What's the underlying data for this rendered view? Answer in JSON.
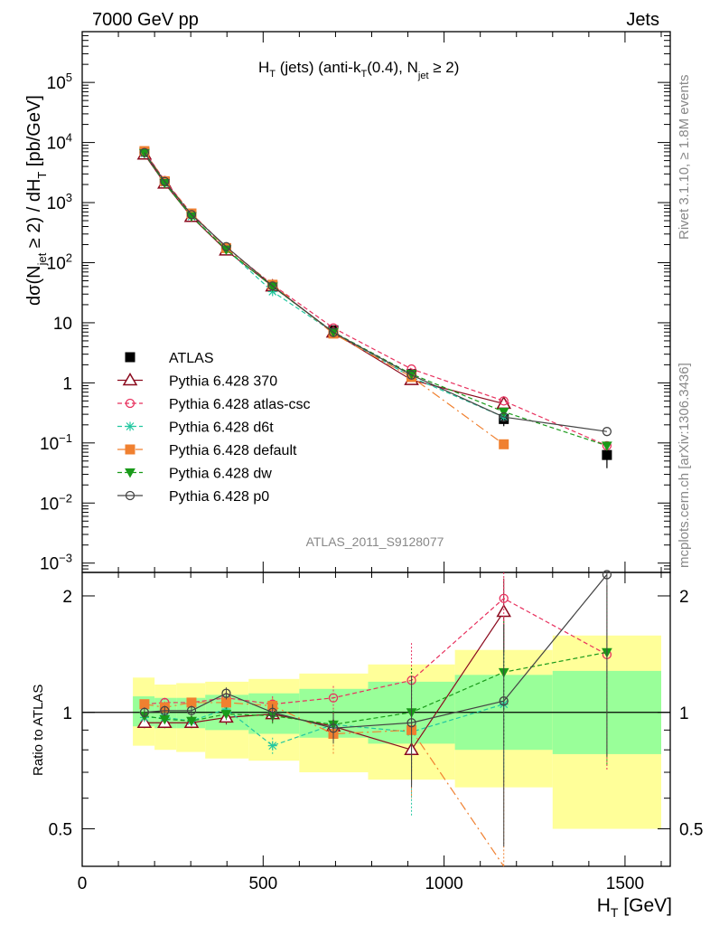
{
  "header": {
    "left": "7000 GeV pp",
    "right": "Jets"
  },
  "side": {
    "rivet": "Rivet 3.1.10, ≥ 1.8M events",
    "mcplots": "mcplots.cern.ch [arXiv:1306.3436]"
  },
  "chart_data": {
    "type": "line",
    "title": "H_T (jets) (anti-k_T(0.4), N_jet ≥ 2)",
    "analysis": "ATLAS_2011_S9128077",
    "xlabel": "H_T [GeV]",
    "ylabel": "dσ(N_jet ≥ 2) / dH_T [pb/GeV]",
    "ratio_ylabel": "Ratio to ATLAS",
    "xlim": [
      0,
      1625
    ],
    "ylim": [
      0.0007,
      700000
    ],
    "yscale": "log",
    "ratio_ylim": [
      0.4,
      2.3
    ],
    "ratio_scale": "log",
    "x_ticks": [
      0,
      500,
      1000,
      1500
    ],
    "y_ticks": [
      {
        "v": 0.001,
        "m": "10",
        "e": "−3"
      },
      {
        "v": 0.01,
        "m": "10",
        "e": "−2"
      },
      {
        "v": 0.1,
        "m": "10",
        "e": "−1"
      },
      {
        "v": 1,
        "m": "1",
        "e": ""
      },
      {
        "v": 10,
        "m": "10",
        "e": ""
      },
      {
        "v": 100,
        "m": "10",
        "e": "2"
      },
      {
        "v": 1000,
        "m": "10",
        "e": "3"
      },
      {
        "v": 10000,
        "m": "10",
        "e": "4"
      },
      {
        "v": 100000,
        "m": "10",
        "e": "5"
      }
    ],
    "ratio_ticks": [
      0.5,
      1,
      2
    ],
    "bins": [
      [
        140,
        200
      ],
      [
        200,
        260
      ],
      [
        260,
        340
      ],
      [
        340,
        460
      ],
      [
        460,
        600
      ],
      [
        600,
        790
      ],
      [
        790,
        1030
      ],
      [
        1030,
        1300
      ],
      [
        1300,
        1600
      ]
    ],
    "x": [
      172,
      228,
      302,
      398,
      526,
      694,
      910,
      1165,
      1450
    ],
    "band_inner": [
      [
        0.92,
        1.1
      ],
      [
        0.91,
        1.09
      ],
      [
        0.91,
        1.09
      ],
      [
        0.9,
        1.11
      ],
      [
        0.88,
        1.12
      ],
      [
        0.86,
        1.15
      ],
      [
        0.83,
        1.2
      ],
      [
        0.8,
        1.25
      ],
      [
        0.78,
        1.28
      ]
    ],
    "band_outer": [
      [
        0.82,
        1.23
      ],
      [
        0.8,
        1.18
      ],
      [
        0.79,
        1.19
      ],
      [
        0.76,
        1.2
      ],
      [
        0.75,
        1.22
      ],
      [
        0.7,
        1.26
      ],
      [
        0.67,
        1.33
      ],
      [
        0.64,
        1.45
      ],
      [
        0.5,
        1.58
      ]
    ],
    "series": [
      {
        "name": "ATLAS",
        "color": "#000000",
        "marker": "square-filled",
        "dash": "none",
        "line": false,
        "values": [
          6800,
          2200,
          620,
          165,
          41,
          7.5,
          1.4,
          0.25,
          0.063
        ],
        "err_up": [
          500,
          150,
          45,
          12,
          3,
          0.6,
          0.15,
          0.06,
          0.025
        ],
        "err_dn": [
          500,
          150,
          45,
          12,
          3,
          0.6,
          0.15,
          0.06,
          0.025
        ]
      },
      {
        "name": "Pythia 6.428 370",
        "color": "#8b0a1e",
        "marker": "triangle-open",
        "dash": "none",
        "line": true,
        "values": [
          6350,
          2080,
          580,
          160,
          40.5,
          6.9,
          1.12,
          0.45,
          null
        ],
        "ratio": [
          0.94,
          0.94,
          0.94,
          0.97,
          0.99,
          0.92,
          0.8,
          1.82,
          null
        ],
        "ratio_err": [
          0.03,
          0.03,
          0.03,
          0.04,
          0.05,
          0.08,
          0.15,
          0.4,
          null
        ]
      },
      {
        "name": "Pythia 6.428 atlas-csc",
        "color": "#e8315e",
        "marker": "circle-open",
        "dash": "5,3",
        "line": true,
        "values": [
          7140,
          2330,
          660,
          180,
          43,
          8.2,
          1.7,
          0.5,
          0.09
        ],
        "ratio": [
          1.05,
          1.06,
          1.06,
          1.09,
          1.05,
          1.09,
          1.21,
          1.97,
          1.41
        ],
        "ratio_err": [
          0.03,
          0.03,
          0.03,
          0.04,
          0.05,
          0.08,
          0.3,
          0.5,
          0.7
        ]
      },
      {
        "name": "Pythia 6.428 d6t",
        "color": "#22c7a0",
        "marker": "star",
        "dash": "5,3",
        "line": true,
        "values": [
          6600,
          2130,
          590,
          168,
          33,
          7.0,
          1.25,
          0.27,
          null
        ],
        "ratio": [
          0.97,
          0.97,
          0.95,
          1.02,
          0.82,
          0.93,
          0.89,
          1.05,
          null
        ],
        "ratio_err": [
          0.03,
          0.03,
          0.03,
          0.04,
          0.04,
          0.08,
          0.35,
          0.4,
          null
        ]
      },
      {
        "name": "Pythia 6.428 default",
        "color": "#f08030",
        "marker": "square-filled",
        "dash": "10,4,2,4",
        "line": true,
        "values": [
          7200,
          2270,
          660,
          175,
          43,
          6.6,
          1.25,
          0.095,
          null
        ],
        "ratio": [
          1.05,
          1.03,
          1.06,
          1.06,
          1.04,
          0.88,
          0.9,
          0.38,
          null
        ],
        "ratio_err": [
          0.03,
          0.03,
          0.03,
          0.04,
          0.05,
          0.1,
          0.3,
          0.3,
          null
        ]
      },
      {
        "name": "Pythia 6.428 dw",
        "color": "#1a9a1a",
        "marker": "triangle-down-filled",
        "dash": "5,3",
        "line": true,
        "values": [
          6650,
          2110,
          590,
          165,
          40,
          7.0,
          1.4,
          0.33,
          0.09
        ],
        "ratio": [
          0.98,
          0.96,
          0.95,
          0.99,
          0.98,
          0.93,
          1.0,
          1.27,
          1.43
        ],
        "ratio_err": [
          0.03,
          0.03,
          0.03,
          0.04,
          0.05,
          0.08,
          0.3,
          0.45,
          0.7
        ]
      },
      {
        "name": "Pythia 6.428 p0",
        "color": "#444444",
        "marker": "circle-open",
        "dash": "none",
        "line": true,
        "values": [
          6800,
          2240,
          630,
          185,
          41,
          6.9,
          1.35,
          0.27,
          0.155
        ],
        "ratio": [
          1.0,
          1.01,
          1.01,
          1.12,
          1.0,
          0.91,
          0.94,
          1.07,
          2.27
        ],
        "ratio_err": [
          0.03,
          0.03,
          0.03,
          0.04,
          0.05,
          0.08,
          0.3,
          0.62,
          1.5
        ]
      }
    ]
  }
}
